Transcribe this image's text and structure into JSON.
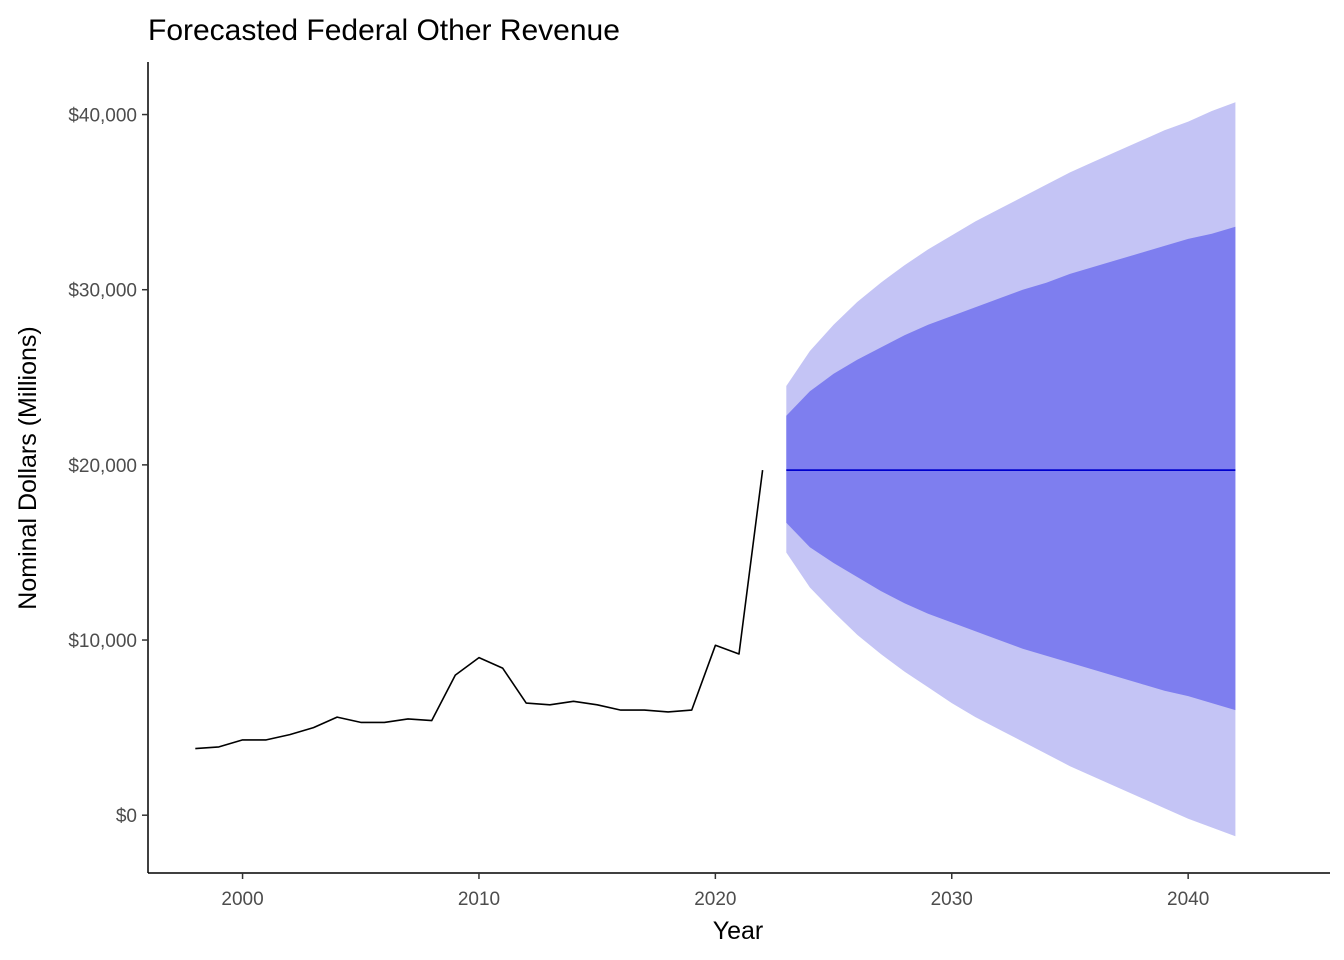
{
  "chart_data": {
    "type": "line",
    "title": "Forecasted Federal Other Revenue",
    "xlabel": "Year",
    "ylabel": "Nominal Dollars (Millions)",
    "xlim": [
      1996,
      2046
    ],
    "ylim": [
      -3300,
      43000
    ],
    "x_ticks": [
      2000,
      2010,
      2020,
      2030,
      2040
    ],
    "x_tick_labels": [
      "2000",
      "2010",
      "2020",
      "2030",
      "2040"
    ],
    "y_ticks": [
      0,
      10000,
      20000,
      30000,
      40000
    ],
    "y_tick_labels": [
      "$0",
      "$10,000",
      "$20,000",
      "$30,000",
      "$40,000"
    ],
    "grid": false,
    "legend": "none",
    "colors": {
      "history": "#000000",
      "forecast": "#0000cd",
      "band80": "#7e7eef",
      "band95": "#c4c4f5"
    },
    "series": [
      {
        "role": "history",
        "x": [
          1998,
          1999,
          2000,
          2001,
          2002,
          2003,
          2004,
          2005,
          2006,
          2007,
          2008,
          2009,
          2010,
          2011,
          2012,
          2013,
          2014,
          2015,
          2016,
          2017,
          2018,
          2019,
          2020,
          2021,
          2022
        ],
        "values": [
          3800,
          3900,
          4300,
          4300,
          4600,
          5000,
          5600,
          5300,
          5300,
          5500,
          5400,
          8000,
          9000,
          8400,
          6400,
          6300,
          6500,
          6300,
          6000,
          6000,
          5900,
          6000,
          9700,
          9200,
          19700
        ]
      },
      {
        "role": "forecast",
        "x": [
          2023,
          2042
        ],
        "values": [
          19700,
          19700
        ]
      }
    ],
    "bands": [
      {
        "role": "95",
        "x": [
          2023,
          2024,
          2025,
          2026,
          2027,
          2028,
          2029,
          2030,
          2031,
          2032,
          2033,
          2034,
          2035,
          2036,
          2037,
          2038,
          2039,
          2040,
          2041,
          2042
        ],
        "lower": [
          15000,
          13000,
          11600,
          10300,
          9200,
          8200,
          7300,
          6400,
          5600,
          4900,
          4200,
          3500,
          2800,
          2200,
          1600,
          1000,
          400,
          -200,
          -700,
          -1200
        ],
        "upper": [
          24500,
          26500,
          28000,
          29300,
          30400,
          31400,
          32300,
          33100,
          33900,
          34600,
          35300,
          36000,
          36700,
          37300,
          37900,
          38500,
          39100,
          39600,
          40200,
          40700
        ]
      },
      {
        "role": "80",
        "x": [
          2023,
          2024,
          2025,
          2026,
          2027,
          2028,
          2029,
          2030,
          2031,
          2032,
          2033,
          2034,
          2035,
          2036,
          2037,
          2038,
          2039,
          2040,
          2041,
          2042
        ],
        "lower": [
          16700,
          15300,
          14400,
          13600,
          12800,
          12100,
          11500,
          11000,
          10500,
          10000,
          9500,
          9100,
          8700,
          8300,
          7900,
          7500,
          7100,
          6800,
          6400,
          6000
        ],
        "upper": [
          22800,
          24200,
          25200,
          26000,
          26700,
          27400,
          28000,
          28500,
          29000,
          29500,
          30000,
          30400,
          30900,
          31300,
          31700,
          32100,
          32500,
          32900,
          33200,
          33600
        ]
      }
    ]
  }
}
